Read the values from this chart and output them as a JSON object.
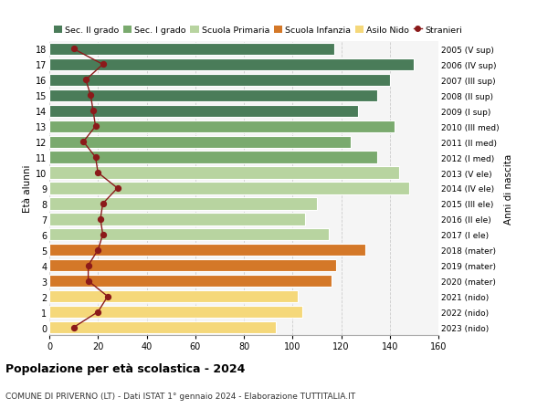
{
  "ages": [
    18,
    17,
    16,
    15,
    14,
    13,
    12,
    11,
    10,
    9,
    8,
    7,
    6,
    5,
    4,
    3,
    2,
    1,
    0
  ],
  "years": [
    "2005 (V sup)",
    "2006 (IV sup)",
    "2007 (III sup)",
    "2008 (II sup)",
    "2009 (I sup)",
    "2010 (III med)",
    "2011 (II med)",
    "2012 (I med)",
    "2013 (V ele)",
    "2014 (IV ele)",
    "2015 (III ele)",
    "2016 (II ele)",
    "2017 (I ele)",
    "2018 (mater)",
    "2019 (mater)",
    "2020 (mater)",
    "2021 (nido)",
    "2022 (nido)",
    "2023 (nido)"
  ],
  "values": [
    117,
    150,
    140,
    135,
    127,
    142,
    124,
    135,
    144,
    148,
    110,
    105,
    115,
    130,
    118,
    116,
    102,
    104,
    93
  ],
  "stranieri": [
    10,
    22,
    15,
    17,
    18,
    19,
    14,
    19,
    20,
    28,
    22,
    21,
    22,
    20,
    16,
    16,
    24,
    20,
    10
  ],
  "colors": {
    "sec2": "#4a7c59",
    "sec1": "#7aaa6e",
    "primaria": "#b8d4a0",
    "infanzia": "#d47828",
    "nido": "#f5d87a"
  },
  "bar_colors": [
    "#4a7c59",
    "#4a7c59",
    "#4a7c59",
    "#4a7c59",
    "#4a7c59",
    "#7aaa6e",
    "#7aaa6e",
    "#7aaa6e",
    "#b8d4a0",
    "#b8d4a0",
    "#b8d4a0",
    "#b8d4a0",
    "#b8d4a0",
    "#d47828",
    "#d47828",
    "#d47828",
    "#f5d87a",
    "#f5d87a",
    "#f5d87a"
  ],
  "title": "Popolazione per età scolastica - 2024",
  "subtitle": "COMUNE DI PRIVERNO (LT) - Dati ISTAT 1° gennaio 2024 - Elaborazione TUTTITALIA.IT",
  "ylabel": "Età alunni",
  "ylabel_right": "Anni di nascita",
  "xlim": [
    0,
    160
  ],
  "xticks": [
    0,
    20,
    40,
    60,
    80,
    100,
    120,
    140,
    160
  ],
  "bg_color": "#f5f5f5",
  "grid_color": "#cccccc",
  "stranieri_color": "#8b1a1a",
  "legend_labels": [
    "Sec. II grado",
    "Sec. I grado",
    "Scuola Primaria",
    "Scuola Infanzia",
    "Asilo Nido",
    "Stranieri"
  ]
}
